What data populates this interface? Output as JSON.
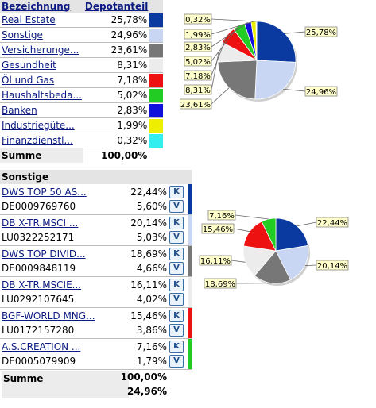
{
  "top_table": {
    "headers": [
      "Bezeichnung",
      "Depotanteil"
    ],
    "rows": [
      {
        "name": "Real Estate",
        "pct": "25,78%",
        "color": "#0a3aa0"
      },
      {
        "name": "Sonstige",
        "pct": "24,96%",
        "color": "#c8d6f4"
      },
      {
        "name": "Versicherunge...",
        "pct": "23,61%",
        "color": "#777777"
      },
      {
        "name": "Gesundheit",
        "pct": "8,31%",
        "color": "#ececec"
      },
      {
        "name": "Öl und Gas",
        "pct": "7,18%",
        "color": "#ee1111"
      },
      {
        "name": "Haushaltsbeda...",
        "pct": "5,02%",
        "color": "#22cc22"
      },
      {
        "name": "Banken",
        "pct": "2,83%",
        "color": "#1010dd"
      },
      {
        "name": "Industriegüte...",
        "pct": "1,99%",
        "color": "#eeee00"
      },
      {
        "name": "Finanzdienstl...",
        "pct": "0,32%",
        "color": "#33eeee"
      }
    ],
    "sum_label": "Summe",
    "sum_value": "100,00%"
  },
  "bottom_table": {
    "title": "Sonstige",
    "k_label": "K",
    "v_label": "V",
    "rows": [
      {
        "name": "DWS TOP 50 AS...",
        "isin": "DE0009769760",
        "pct1": "22,44%",
        "pct2": "5,60%",
        "color": "#0a3aa0"
      },
      {
        "name": "DB X-TR.MSCI ...",
        "isin": "LU0322252171",
        "pct1": "20,14%",
        "pct2": "5,03%",
        "color": "#c8d6f4"
      },
      {
        "name": "DWS TOP DIVID...",
        "isin": "DE0009848119",
        "pct1": "18,69%",
        "pct2": "4,66%",
        "color": "#777777"
      },
      {
        "name": "DB X-TR.MSCIE...",
        "isin": "LU0292107645",
        "pct1": "16,11%",
        "pct2": "4,02%",
        "color": "#ececec"
      },
      {
        "name": "BGF-WORLD MNG...",
        "isin": "LU0172157280",
        "pct1": "15,46%",
        "pct2": "3,86%",
        "color": "#ee1111"
      },
      {
        "name": "A.S.CREATION ...",
        "isin": "DE0005079909",
        "pct1": "7,16%",
        "pct2": "1,79%",
        "color": "#22cc22"
      }
    ],
    "sum_label": "Summe",
    "sum_value1": "100,00%",
    "sum_value2": "24,96%"
  },
  "chart_data": [
    {
      "type": "pie",
      "values": [
        25.78,
        24.96,
        23.61,
        8.31,
        7.18,
        5.02,
        2.83,
        1.99,
        0.32
      ],
      "labels": [
        "25,78%",
        "24,96%",
        "23,61%",
        "8,31%",
        "7,18%",
        "5,02%",
        "2,83%",
        "1,99%",
        "0,32%"
      ],
      "colors": [
        "#0a3aa0",
        "#c8d6f4",
        "#777777",
        "#ececec",
        "#ee1111",
        "#22cc22",
        "#1010dd",
        "#eeee00",
        "#33eeee"
      ]
    },
    {
      "type": "pie",
      "values": [
        22.44,
        20.14,
        18.69,
        16.11,
        15.46,
        7.16
      ],
      "labels": [
        "22,44%",
        "20,14%",
        "18,69%",
        "16,11%",
        "15,46%",
        "7,16%"
      ],
      "colors": [
        "#0a3aa0",
        "#c8d6f4",
        "#777777",
        "#ececec",
        "#ee1111",
        "#22cc22"
      ]
    }
  ]
}
